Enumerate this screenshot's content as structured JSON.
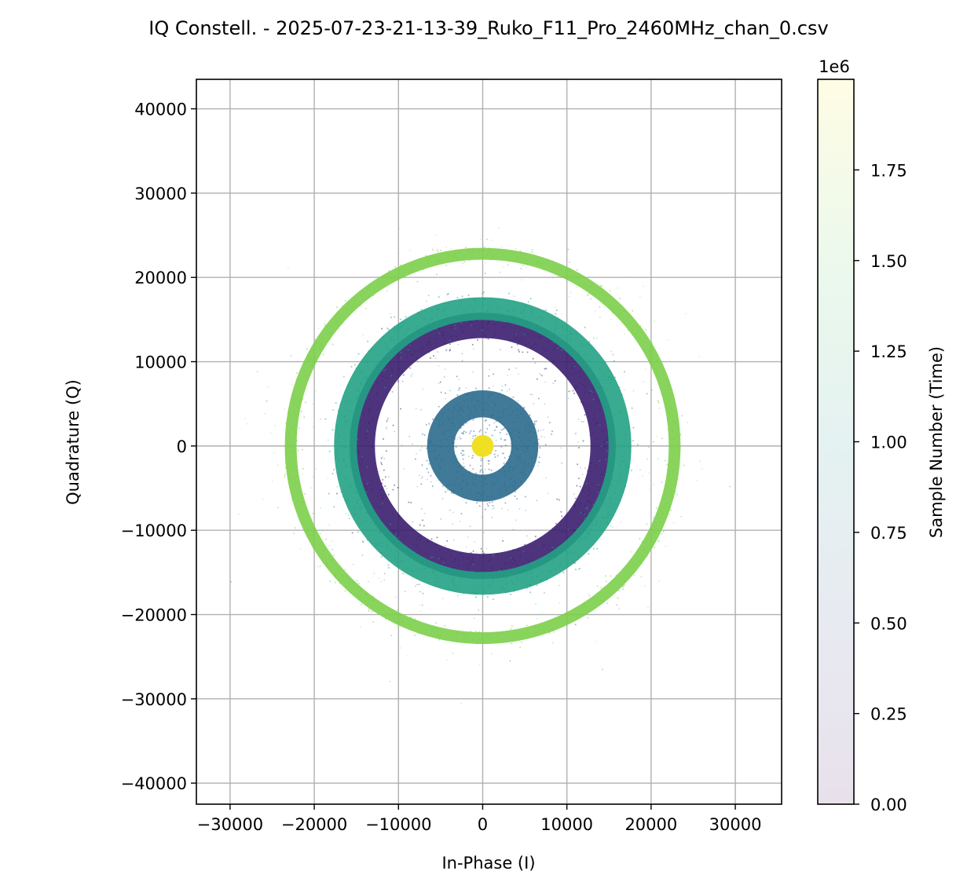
{
  "chart_data": {
    "type": "scatter",
    "title": "IQ Constell. - 2025-07-23-21-13-39_Ruko_F11_Pro_2460MHz_chan_0.csv",
    "xlabel": "In-Phase (I)",
    "ylabel": "Quadrature (Q)",
    "xlim": [
      -34000,
      35500
    ],
    "ylim": [
      -42500,
      43500
    ],
    "x_ticks": [
      -30000,
      -20000,
      -10000,
      0,
      10000,
      20000,
      30000
    ],
    "y_ticks": [
      -40000,
      -30000,
      -20000,
      -10000,
      0,
      10000,
      20000,
      30000,
      40000
    ],
    "x_tick_labels": [
      "−30000",
      "−20000",
      "−10000",
      "0",
      "10000",
      "20000",
      "30000"
    ],
    "y_tick_labels": [
      "−40000",
      "−30000",
      "−20000",
      "−10000",
      "0",
      "10000",
      "20000",
      "30000",
      "40000"
    ],
    "grid": true,
    "colormap": "viridis",
    "colorbar": {
      "label": "Sample Number (Time)",
      "offset_text": "1e6",
      "range": [
        0,
        2000000
      ],
      "ticks": [
        0,
        0.25,
        0.5,
        0.75,
        1.0,
        1.25,
        1.5,
        1.75
      ],
      "tick_labels": [
        "0.00",
        "0.25",
        "0.50",
        "0.75",
        "1.00",
        "1.25",
        "1.50",
        "1.75"
      ]
    },
    "constellation_rings": [
      {
        "radius": 14300,
        "width": 3000,
        "color": "#3b1e6f",
        "sample_number": 150000
      },
      {
        "radius": 16300,
        "width": 2700,
        "color": "#22a284",
        "sample_number": 1250000
      },
      {
        "radius": 5000,
        "width": 3200,
        "color": "#2c6c8e",
        "sample_number": 800000
      },
      {
        "radius": 22800,
        "width": 1400,
        "color": "#7ccf4a",
        "sample_number": 1600000
      },
      {
        "radius": 0,
        "width": 2600,
        "color": "#f0e024",
        "sample_number": 1950000
      }
    ]
  }
}
